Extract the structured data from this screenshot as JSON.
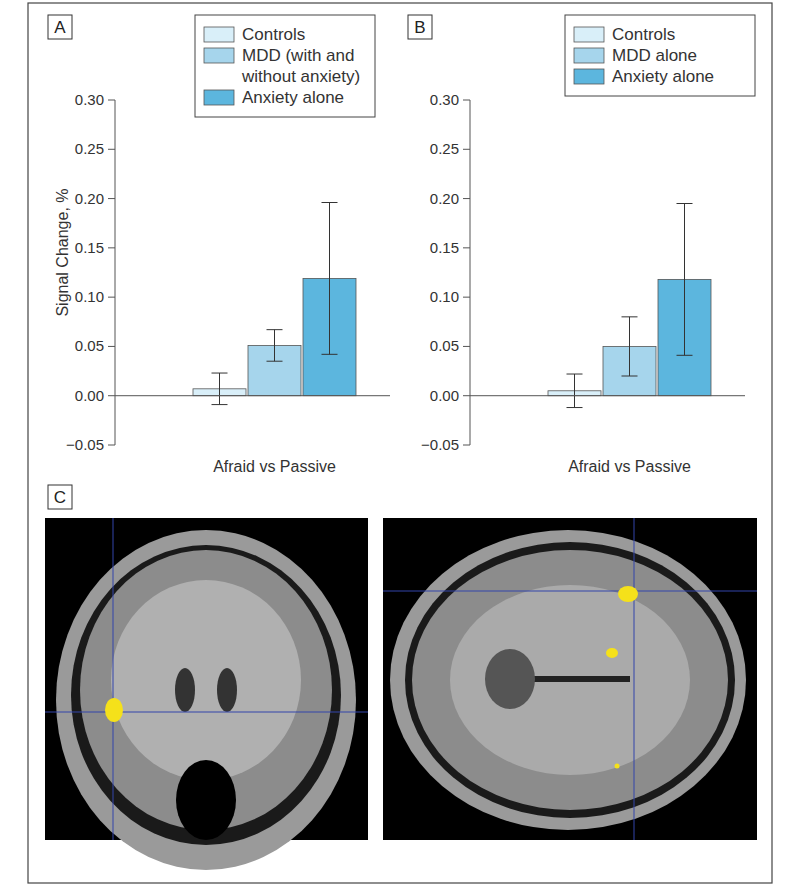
{
  "chart_data": [
    {
      "type": "bar",
      "title": "A",
      "ylabel": "Signal Change, %",
      "categories": [
        "Afraid vs Passive"
      ],
      "series": [
        {
          "name": "Controls",
          "color": "#d9eff9",
          "values": [
            0.007
          ],
          "errors": [
            0.016
          ]
        },
        {
          "name": "MDD (with and without anxiety)",
          "color": "#a6d5ec",
          "values": [
            0.051
          ],
          "errors": [
            0.016
          ]
        },
        {
          "name": "Anxiety alone",
          "color": "#5cb6de",
          "values": [
            0.119
          ],
          "errors": [
            0.077
          ]
        }
      ],
      "ylim": [
        -0.05,
        0.3
      ],
      "yticks": [
        {
          "value": -0.05,
          "label": "−0.05"
        },
        {
          "value": 0,
          "label": "0.00"
        },
        0.05,
        {
          "value": 0.1,
          "label": "0.10"
        },
        0.15,
        {
          "value": 0.2,
          "label": "0.20"
        },
        0.25,
        {
          "value": 0.3,
          "label": "0.30"
        }
      ],
      "legend": "top-right"
    },
    {
      "type": "bar",
      "title": "B",
      "categories": [
        "Afraid vs Passive"
      ],
      "series": [
        {
          "name": "Controls",
          "color": "#d9eff9",
          "values": [
            0.005
          ],
          "errors": [
            0.017
          ]
        },
        {
          "name": "MDD alone",
          "color": "#a6d5ec",
          "values": [
            0.05
          ],
          "errors": [
            0.03
          ]
        },
        {
          "name": "Anxiety alone",
          "color": "#5cb6de",
          "values": [
            0.118
          ],
          "errors": [
            0.077
          ]
        }
      ],
      "ylim": [
        -0.05,
        0.3
      ],
      "yticks": [
        {
          "value": -0.05,
          "label": "−0.05"
        },
        {
          "value": 0,
          "label": "0.00"
        },
        0.05,
        {
          "value": 0.1,
          "label": "0.10"
        },
        0.15,
        {
          "value": 0.2,
          "label": "0.20"
        },
        0.25,
        {
          "value": 0.3,
          "label": "0.30"
        }
      ],
      "legend": "top-right"
    }
  ],
  "image_panel": {
    "label": "C"
  }
}
